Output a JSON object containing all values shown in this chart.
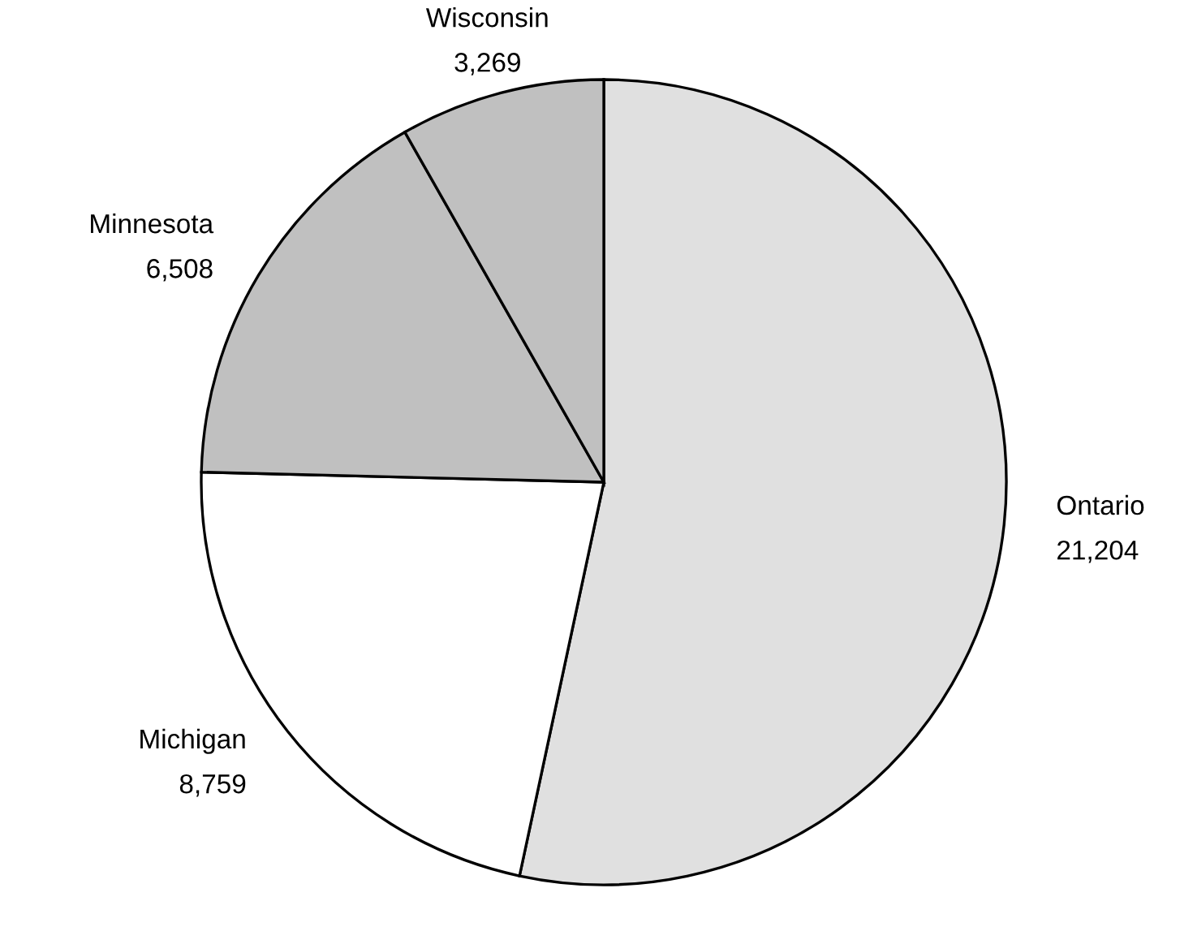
{
  "chart_data": {
    "type": "pie",
    "categories": [
      "Ontario",
      "Michigan",
      "Minnesota",
      "Wisconsin"
    ],
    "values": [
      21204,
      8759,
      6508,
      3269
    ],
    "value_labels": [
      "21,204",
      "8,759",
      "6,508",
      "3,269"
    ],
    "colors": [
      "#e0e0e0",
      "#ffffff",
      "#c0c0c0",
      "#c0c0c0"
    ]
  }
}
